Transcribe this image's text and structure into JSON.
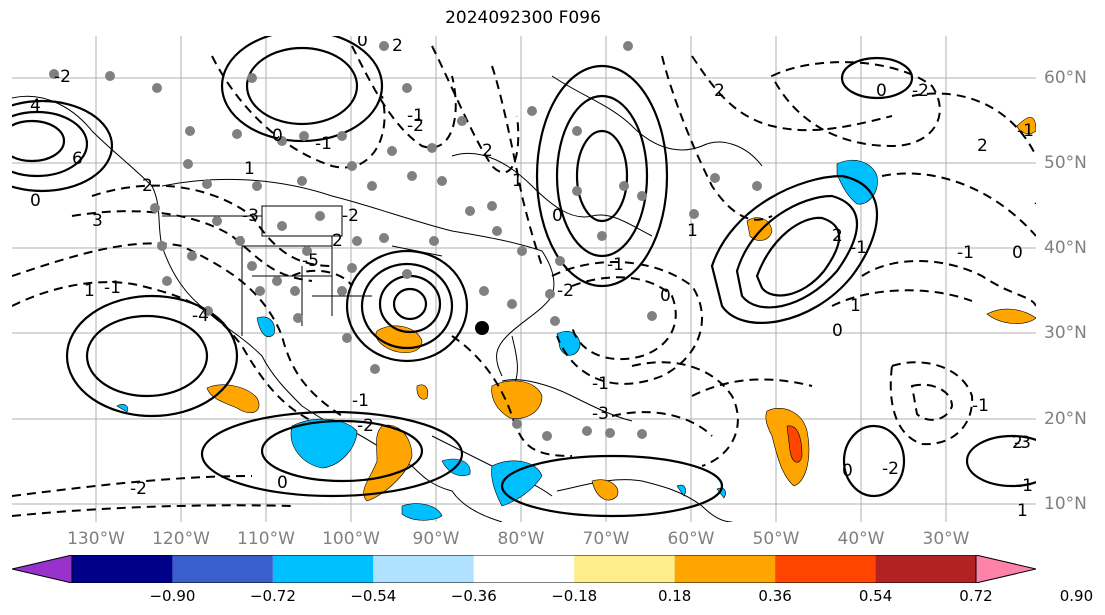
{
  "title": "2024092300 F096",
  "x_ticks": [
    "130°W",
    "120°W",
    "110°W",
    "100°W",
    "90°W",
    "80°W",
    "70°W",
    "60°W",
    "50°W",
    "40°W",
    "30°W"
  ],
  "y_ticks": [
    "60°N",
    "50°N",
    "40°N",
    "30°N",
    "20°N",
    "10°N"
  ],
  "colorbar": {
    "colors": [
      "#9932cc",
      "#00008b",
      "#3a5fcd",
      "#00bfff",
      "#b0e2ff",
      "#ffffff",
      "#ffec8b",
      "#ffa500",
      "#ff4500",
      "#b22222",
      "#ff82ab"
    ],
    "labels": [
      "−0.90",
      "−0.72",
      "−0.54",
      "−0.36",
      "−0.18",
      "0.18",
      "0.36",
      "0.54",
      "0.72",
      "0.90"
    ]
  },
  "contour_labels": [
    "4",
    "6",
    "2",
    "-2",
    "3",
    "0",
    "-3",
    "-1",
    "1",
    "-4",
    "-5",
    "2",
    "-2",
    "0",
    "1",
    "-1",
    "2",
    "0",
    "-1",
    "-2",
    "2",
    "1",
    "0",
    "-2",
    "-1",
    "0",
    "1",
    "2",
    "-2",
    "0",
    "2",
    "-1",
    "-2",
    "-1",
    "0",
    "-1",
    "2",
    "1",
    "0",
    "-1",
    "2",
    "0",
    "-2",
    "-3",
    "-1",
    "1",
    "-1",
    "-2",
    "0",
    "-2",
    "-3",
    "-1"
  ]
}
